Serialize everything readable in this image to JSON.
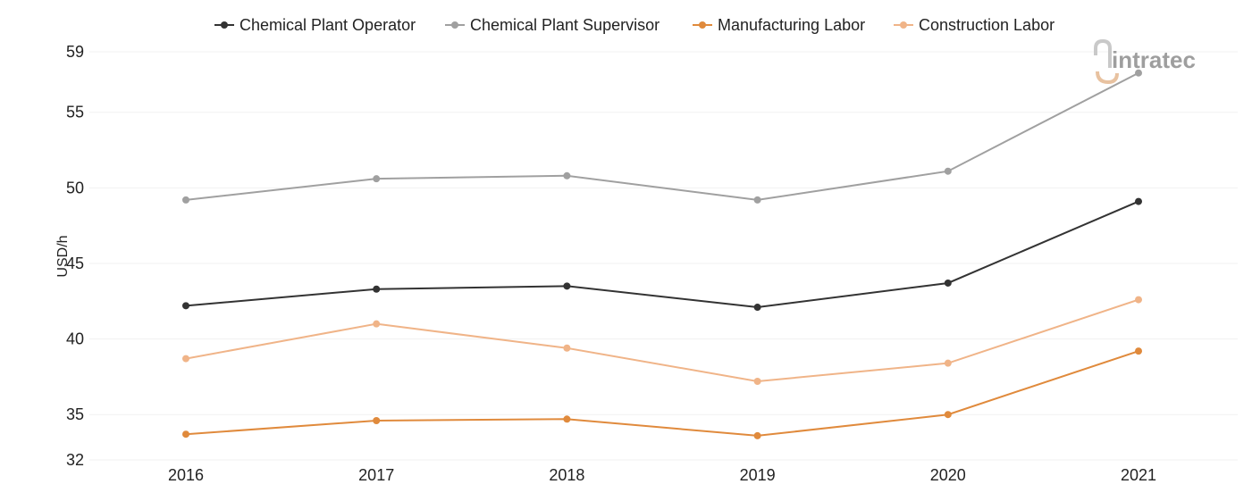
{
  "chart_data": {
    "type": "line",
    "x": [
      "2016",
      "2017",
      "2018",
      "2019",
      "2020",
      "2021"
    ],
    "ylabel": "USD/h",
    "yticks": [
      32,
      35,
      40,
      45,
      50,
      55,
      59
    ],
    "ylim": [
      32,
      59
    ],
    "grid": true,
    "legend_position": "top",
    "series": [
      {
        "name": "Chemical Plant Operator",
        "color": "#333333",
        "values": [
          42.2,
          43.3,
          43.5,
          42.1,
          43.7,
          49.1
        ]
      },
      {
        "name": "Chemical Plant Supervisor",
        "color": "#a0a0a0",
        "values": [
          49.2,
          50.6,
          50.8,
          49.2,
          51.1,
          57.6
        ]
      },
      {
        "name": "Manufacturing Labor",
        "color": "#e08a3c",
        "values": [
          33.7,
          34.6,
          34.7,
          33.6,
          35.0,
          39.2
        ]
      },
      {
        "name": "Construction Labor",
        "color": "#f0b488",
        "values": [
          38.7,
          41.0,
          39.4,
          37.2,
          38.4,
          42.6
        ]
      }
    ]
  },
  "logo": {
    "text": "intratec",
    "color": "#9e9e9e",
    "accent": "#e8c2a0"
  }
}
